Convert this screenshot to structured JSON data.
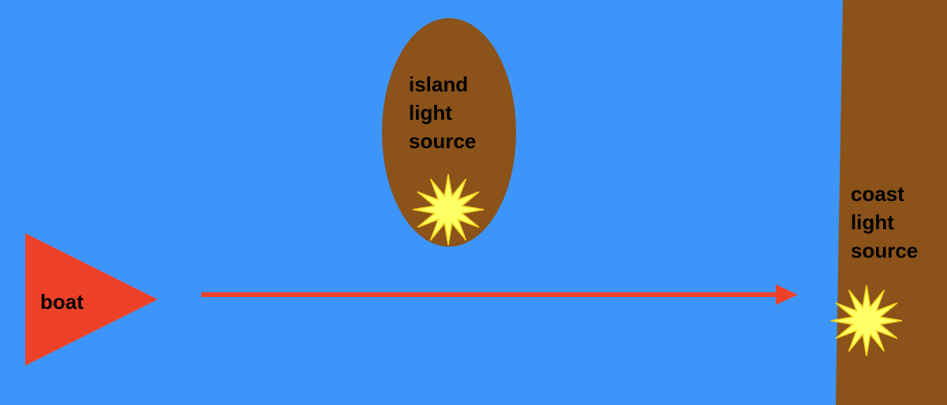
{
  "colors": {
    "water": "#3d95fa",
    "land": "#8b5219",
    "boat": "#ee412a",
    "arrow": "#ee412a",
    "light": "#ffff66",
    "light_stroke": "#f2d21a",
    "text": "#000000"
  },
  "boat": {
    "label": "boat"
  },
  "island": {
    "label_lines": [
      "island",
      "light",
      "source"
    ]
  },
  "coast": {
    "label_lines": [
      "coast",
      "light",
      "source"
    ]
  }
}
